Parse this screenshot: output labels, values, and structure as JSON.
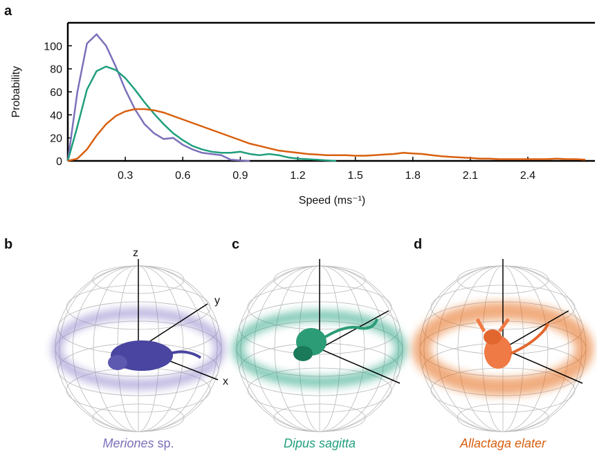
{
  "chart_data": {
    "type": "line",
    "panel_label": "a",
    "ylabel": "Probability",
    "xlabel": "Speed (ms⁻¹)",
    "xlim": [
      0,
      2.75
    ],
    "ylim": [
      0,
      120
    ],
    "xticks": [
      0.3,
      0.6,
      0.9,
      1.2,
      1.5,
      1.8,
      2.1,
      2.4
    ],
    "yticks": [
      0,
      20,
      40,
      60,
      80,
      100
    ],
    "series": [
      {
        "color": "#7b70b9",
        "x": [
          0,
          0.05,
          0.1,
          0.15,
          0.2,
          0.25,
          0.3,
          0.35,
          0.4,
          0.45,
          0.5,
          0.55,
          0.6,
          0.65,
          0.7,
          0.75,
          0.8,
          0.85,
          0.9,
          0.95
        ],
        "values": [
          0,
          60,
          102,
          110,
          100,
          82,
          62,
          45,
          32,
          24,
          19,
          20,
          14,
          10,
          7,
          6,
          5,
          1,
          0.5,
          0
        ]
      },
      {
        "color": "#1f9e7c",
        "x": [
          0,
          0.05,
          0.1,
          0.15,
          0.2,
          0.25,
          0.3,
          0.35,
          0.4,
          0.45,
          0.5,
          0.55,
          0.6,
          0.65,
          0.7,
          0.75,
          0.8,
          0.85,
          0.9,
          0.95,
          1,
          1.05,
          1.1,
          1.15,
          1.2,
          1.25,
          1.3,
          1.35,
          1.4
        ],
        "values": [
          0,
          30,
          62,
          78,
          82,
          79,
          72,
          62,
          51,
          41,
          32,
          24,
          18,
          13,
          10,
          8,
          7,
          7,
          8,
          6,
          5,
          6,
          5,
          3,
          2,
          1.5,
          1,
          0.5,
          0
        ]
      },
      {
        "color": "#d95f0e",
        "x": [
          0,
          0.05,
          0.1,
          0.15,
          0.2,
          0.25,
          0.3,
          0.35,
          0.4,
          0.45,
          0.5,
          0.55,
          0.6,
          0.65,
          0.7,
          0.75,
          0.8,
          0.85,
          0.9,
          0.95,
          1,
          1.05,
          1.1,
          1.15,
          1.2,
          1.25,
          1.3,
          1.35,
          1.4,
          1.45,
          1.5,
          1.55,
          1.6,
          1.65,
          1.7,
          1.75,
          1.8,
          1.85,
          1.9,
          1.95,
          2,
          2.05,
          2.1,
          2.15,
          2.2,
          2.25,
          2.3,
          2.35,
          2.4,
          2.45,
          2.5,
          2.55,
          2.6,
          2.65,
          2.7
        ],
        "values": [
          0,
          2,
          10,
          22,
          32,
          39,
          43,
          45,
          45,
          44,
          42,
          39,
          36,
          33,
          30,
          27,
          24,
          21,
          18,
          15,
          13,
          11,
          9,
          8,
          7,
          6,
          5.5,
          5,
          5,
          5,
          4.5,
          4.5,
          5,
          5.5,
          6,
          7,
          6.5,
          6,
          5,
          4,
          3.5,
          3,
          2.5,
          2,
          2,
          1.5,
          1.5,
          1.5,
          1.5,
          1.5,
          1.5,
          2,
          1.5,
          1.5,
          1
        ]
      }
    ]
  },
  "panels": [
    {
      "label": "b",
      "caption_italic": "Meriones",
      "caption_rest": " sp.",
      "axis_labels": [
        "z",
        "y",
        "x"
      ]
    },
    {
      "label": "c",
      "caption_italic": "Dipus sagitta"
    },
    {
      "label": "d",
      "caption_italic": "Allactaga elater"
    }
  ]
}
